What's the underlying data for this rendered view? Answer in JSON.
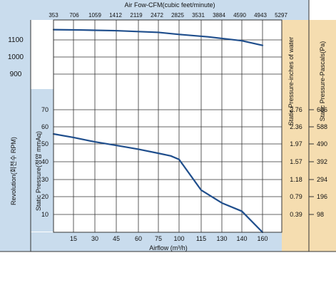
{
  "chart_data": {
    "type": "line",
    "top_axis_title": "Air Fow-CFM(cubic feet/minute)",
    "top_ticks": [
      "353",
      "706",
      "1059",
      "1412",
      "2119",
      "2472",
      "2825",
      "3531",
      "3884",
      "4590",
      "4943",
      "5297"
    ],
    "left_outer_ylabel": "Revolution(회전수 RPM)",
    "left_inner_ylabel": "Static Pressure(정압 mmAq)",
    "right_inner_ylabel": "Static Pressure-inches of water",
    "right_outer_ylabel": "Static Pressure-Pascals(Pa)",
    "xlabel": "Airflow (m³/h)",
    "x_ticks": [
      15,
      30,
      45,
      60,
      75,
      100,
      115,
      130,
      140,
      160
    ],
    "rpm_ticks": [
      1100,
      1000,
      900
    ],
    "pressure_ticks": [
      70,
      60,
      50,
      40,
      30,
      20,
      10
    ],
    "right_inches_ticks": [
      "2.76",
      "2.36",
      "1.97",
      "1.57",
      "1.18",
      "0.79",
      "0.39"
    ],
    "right_pa_ticks": [
      "686",
      "588",
      "490",
      "392",
      "294",
      "196",
      "98"
    ],
    "grid": true,
    "series": [
      {
        "axis": "rpm",
        "color": "#1f4e8c",
        "points": [
          [
            0,
            1160
          ],
          [
            20,
            1158
          ],
          [
            45,
            1154
          ],
          [
            75,
            1144
          ],
          [
            100,
            1132
          ],
          [
            120,
            1118
          ],
          [
            140,
            1095
          ],
          [
            160,
            1068
          ]
        ]
      },
      {
        "axis": "pressure",
        "color": "#1f4e8c",
        "points": [
          [
            0,
            56
          ],
          [
            15,
            54
          ],
          [
            30,
            51.5
          ],
          [
            45,
            49.5
          ],
          [
            60,
            47.3
          ],
          [
            75,
            45
          ],
          [
            90,
            43.5
          ],
          [
            100,
            41.5
          ],
          [
            115,
            24
          ],
          [
            130,
            16.7
          ],
          [
            140,
            12
          ],
          [
            160,
            0
          ]
        ]
      }
    ],
    "colors": {
      "left_panel": "#c9dced",
      "right_panel": "#f5ddb0",
      "axis": "#333333",
      "grid": "#333333",
      "plot_bg": "#ffffff"
    }
  }
}
